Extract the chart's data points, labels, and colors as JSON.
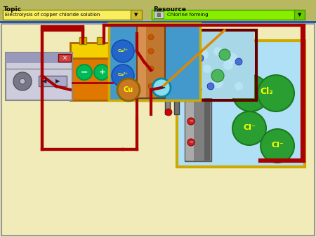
{
  "bg_color": "#f0ebb8",
  "header_bg": "#b8b860",
  "topic_label": "Topic",
  "topic_value": "Electrolysis of copper chloride solution",
  "resource_label": "Resource",
  "resource_value": "Chlorine forming",
  "wire_color": "#aa0000",
  "cl2_color": "#2a9e30",
  "right_panel_bg": "#b0e0f5",
  "right_panel_border": "#ccaa00",
  "electrode_panel_bg": "#4499cc",
  "electrode_panel_border": "#ccaa00",
  "beaker_solution_color": "#90c8e0",
  "battery_yellow": "#f5d000",
  "battery_orange": "#e07800",
  "cathode_brown": "#c07830",
  "anode_gray": "#909090"
}
